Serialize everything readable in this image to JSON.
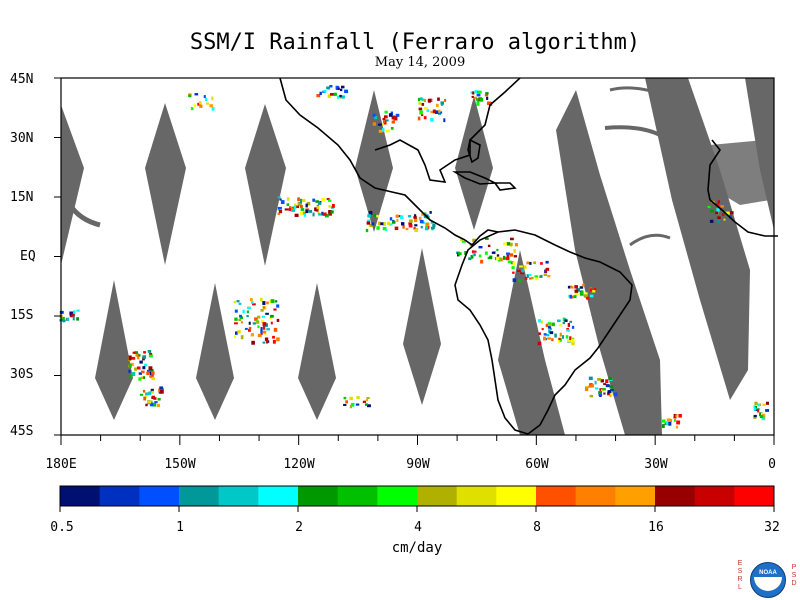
{
  "title": "SSM/I Rainfall (Ferraro algorithm)",
  "subtitle": "May 14, 2009",
  "latitude_labels": [
    "45N",
    "30N",
    "15N",
    "EQ",
    "15S",
    "30S",
    "45S"
  ],
  "longitude_labels": [
    "180E",
    "150W",
    "120W",
    "90W",
    "60W",
    "30W",
    "0"
  ],
  "colorbar": {
    "tick_labels": [
      "0.5",
      "1",
      "2",
      "4",
      "8",
      "16",
      "32"
    ],
    "units": "cm/day",
    "colors": [
      "#001070",
      "#0030c0",
      "#0050ff",
      "#009898",
      "#00c8c8",
      "#00ffff",
      "#009800",
      "#00c000",
      "#00ff00",
      "#b0b000",
      "#e0e000",
      "#ffff00",
      "#ff5000",
      "#ff8000",
      "#ffa000",
      "#980000",
      "#c80000",
      "#ff0000"
    ]
  },
  "swath_color": "#676767",
  "logo": {
    "left_letters": "ESRL",
    "right_letters": "PSD",
    "center_text": "NOAA"
  }
}
